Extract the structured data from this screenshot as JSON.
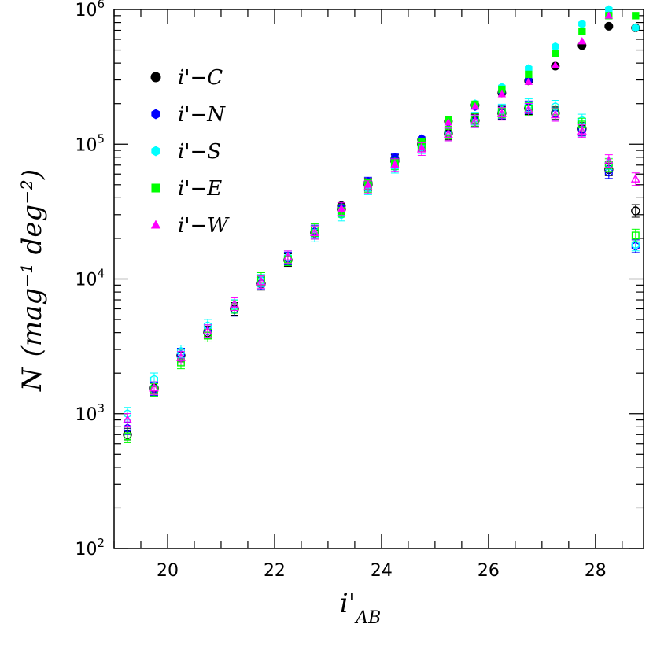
{
  "chart_data": {
    "type": "scatter",
    "title": "",
    "xlabel_main": "i'",
    "xlabel_sub": "AB",
    "ylabel_main": "N",
    "ylabel_units": "(mag⁻¹ deg⁻²)",
    "xlim": [
      19.0,
      28.9
    ],
    "ylim": [
      100,
      1000000
    ],
    "y_scale": "log",
    "grid": false,
    "legend_position": "top-left",
    "x_ticks": [
      20,
      22,
      24,
      26,
      28
    ],
    "x_tick_labels": [
      "20",
      "22",
      "24",
      "26",
      "28"
    ],
    "y_ticks": [
      100,
      1000,
      10000,
      100000,
      1000000
    ],
    "y_tick_labels": [
      {
        "base": "10",
        "exp": "2"
      },
      {
        "base": "10",
        "exp": "3"
      },
      {
        "base": "10",
        "exp": "4"
      },
      {
        "base": "10",
        "exp": "5"
      },
      {
        "base": "10",
        "exp": "6"
      }
    ],
    "series": [
      {
        "name": "i'−C",
        "color": "#000000",
        "marker": "circle",
        "x": [
          19.25,
          19.75,
          20.25,
          20.75,
          21.25,
          21.75,
          22.25,
          22.75,
          23.25,
          23.75,
          24.25,
          24.75,
          25.25,
          25.75,
          26.25,
          26.75,
          27.25,
          27.75,
          28.25,
          28.75
        ],
        "filled": [
          null,
          null,
          null,
          null,
          null,
          null,
          null,
          null,
          35000,
          52000,
          78000,
          108000,
          148000,
          195000,
          240000,
          295000,
          380000,
          540000,
          750000,
          730000
        ],
        "open": [
          700,
          1550,
          2700,
          4000,
          6000,
          9200,
          13800,
          22000,
          33000,
          50000,
          75000,
          100000,
          120000,
          150000,
          170000,
          185000,
          170000,
          130000,
          65000,
          32000
        ]
      },
      {
        "name": "i'−N",
        "color": "#0000ff",
        "marker": "hexagon",
        "x": [
          19.25,
          19.75,
          20.25,
          20.75,
          21.25,
          21.75,
          22.25,
          22.75,
          23.25,
          23.75,
          24.25,
          24.75,
          25.25,
          25.75,
          26.25,
          26.75,
          27.25,
          27.75,
          28.25,
          28.75
        ],
        "filled": [
          null,
          null,
          null,
          null,
          null,
          null,
          null,
          null,
          34000,
          53000,
          80000,
          110000,
          145000,
          190000,
          245000,
          300000,
          null,
          null,
          null,
          null
        ],
        "open": [
          780,
          1520,
          2750,
          4100,
          5900,
          9300,
          14200,
          22500,
          34000,
          51000,
          76000,
          98000,
          118000,
          148000,
          172000,
          188000,
          168000,
          128000,
          62000,
          17500
        ]
      },
      {
        "name": "i'−S",
        "color": "#00ffff",
        "marker": "hexagon",
        "x": [
          19.25,
          19.75,
          20.25,
          20.75,
          21.25,
          21.75,
          22.25,
          22.75,
          23.25,
          23.75,
          24.25,
          24.75,
          25.25,
          25.75,
          26.25,
          26.75,
          27.25,
          27.75,
          28.25,
          28.75
        ],
        "filled": [
          null,
          null,
          null,
          null,
          null,
          null,
          null,
          null,
          30000,
          48000,
          68000,
          100000,
          150000,
          200000,
          265000,
          365000,
          530000,
          780000,
          1000000,
          730000
        ],
        "open": [
          1000,
          1800,
          2900,
          4500,
          6300,
          9700,
          14500,
          21000,
          30000,
          47000,
          68000,
          95000,
          125000,
          155000,
          178000,
          195000,
          190000,
          150000,
          72000,
          18000
        ]
      },
      {
        "name": "i'−E",
        "color": "#00ff00",
        "marker": "square",
        "x": [
          19.25,
          19.75,
          20.25,
          20.75,
          21.25,
          21.75,
          22.25,
          22.75,
          23.25,
          23.75,
          24.25,
          24.75,
          25.25,
          25.75,
          26.25,
          26.75,
          27.25,
          27.75,
          28.25,
          28.75
        ],
        "filled": [
          null,
          null,
          null,
          null,
          null,
          null,
          null,
          null,
          32000,
          51000,
          73000,
          105000,
          152000,
          198000,
          255000,
          330000,
          470000,
          690000,
          900000,
          900000
        ],
        "open": [
          680,
          1500,
          2400,
          3800,
          6200,
          10000,
          14000,
          23000,
          32000,
          49000,
          72000,
          98000,
          122000,
          152000,
          175000,
          182000,
          175000,
          140000,
          70000,
          21000
        ]
      },
      {
        "name": "i'−W",
        "color": "#ff00ff",
        "marker": "triangle",
        "x": [
          19.25,
          19.75,
          20.25,
          20.75,
          21.25,
          21.75,
          22.25,
          22.75,
          23.25,
          23.75,
          24.25,
          24.75,
          25.25,
          25.75,
          26.25,
          26.75,
          27.25,
          27.75,
          28.25,
          28.75
        ],
        "filled": [
          null,
          null,
          null,
          null,
          null,
          null,
          null,
          null,
          33000,
          50000,
          70000,
          95000,
          145000,
          190000,
          235000,
          290000,
          385000,
          580000,
          900000,
          null
        ],
        "open": [
          900,
          1550,
          2600,
          4100,
          6500,
          9500,
          14500,
          22000,
          33000,
          48000,
          70000,
          92000,
          118000,
          148000,
          168000,
          180000,
          165000,
          125000,
          75000,
          55000
        ]
      }
    ]
  }
}
